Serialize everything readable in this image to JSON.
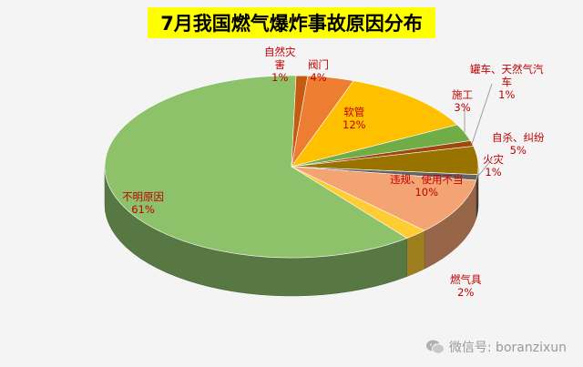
{
  "chart_data": {
    "type": "pie",
    "title": "7月我国燃气爆炸事故原因分布",
    "slices": [
      {
        "label": "阀门",
        "pct_label": "4%",
        "value": 4,
        "color": "#ed7d31"
      },
      {
        "label": "软管",
        "pct_label": "12%",
        "value": 12,
        "color": "#ffc000"
      },
      {
        "label": "施工",
        "pct_label": "3%",
        "value": 3,
        "color": "#70ad47"
      },
      {
        "label": "罐车、天然气汽车",
        "pct_label": "1%",
        "value": 1,
        "color": "#9e480e"
      },
      {
        "label": "自杀、纠纷",
        "pct_label": "5%",
        "value": 5,
        "color": "#997300"
      },
      {
        "label": "火灾",
        "pct_label": "1%",
        "value": 1,
        "color": "#636363"
      },
      {
        "label": "违规、使用不当",
        "pct_label": "10%",
        "value": 10,
        "color": "#f4a373"
      },
      {
        "label": "燃气具",
        "pct_label": "2%",
        "value": 2,
        "color": "#ffcd33"
      },
      {
        "label": "不明原因",
        "pct_label": "61%",
        "value": 61,
        "color": "#8dc26a"
      },
      {
        "label": "自然灾害",
        "pct_label": "1%",
        "value": 1,
        "color": "#c55a11"
      }
    ]
  },
  "watermark": {
    "text": "微信号: boranzixun"
  }
}
